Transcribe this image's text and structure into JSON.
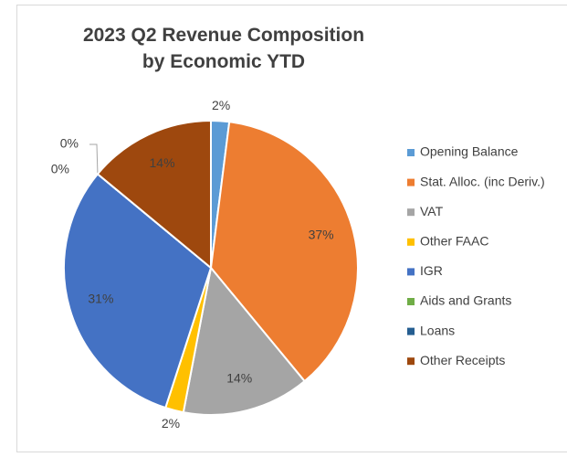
{
  "chart_data": {
    "type": "pie",
    "title": "2023 Q2 Revenue Composition by Economic YTD",
    "categories": [
      "Opening Balance",
      "Stat. Alloc. (inc Deriv.)",
      "VAT",
      "Other FAAC",
      "IGR",
      "Aids and Grants",
      "Loans",
      "Other Receipts"
    ],
    "values": [
      2,
      37,
      14,
      2,
      31,
      0,
      0,
      14
    ],
    "value_labels": [
      "2%",
      "37%",
      "14%",
      "2%",
      "31%",
      "0%",
      "0%",
      "14%"
    ],
    "colors": [
      "#5b9bd5",
      "#ed7d31",
      "#a5a5a5",
      "#ffc000",
      "#4472c4",
      "#70ad47",
      "#255e91",
      "#9e480e"
    ],
    "legend": "right"
  }
}
